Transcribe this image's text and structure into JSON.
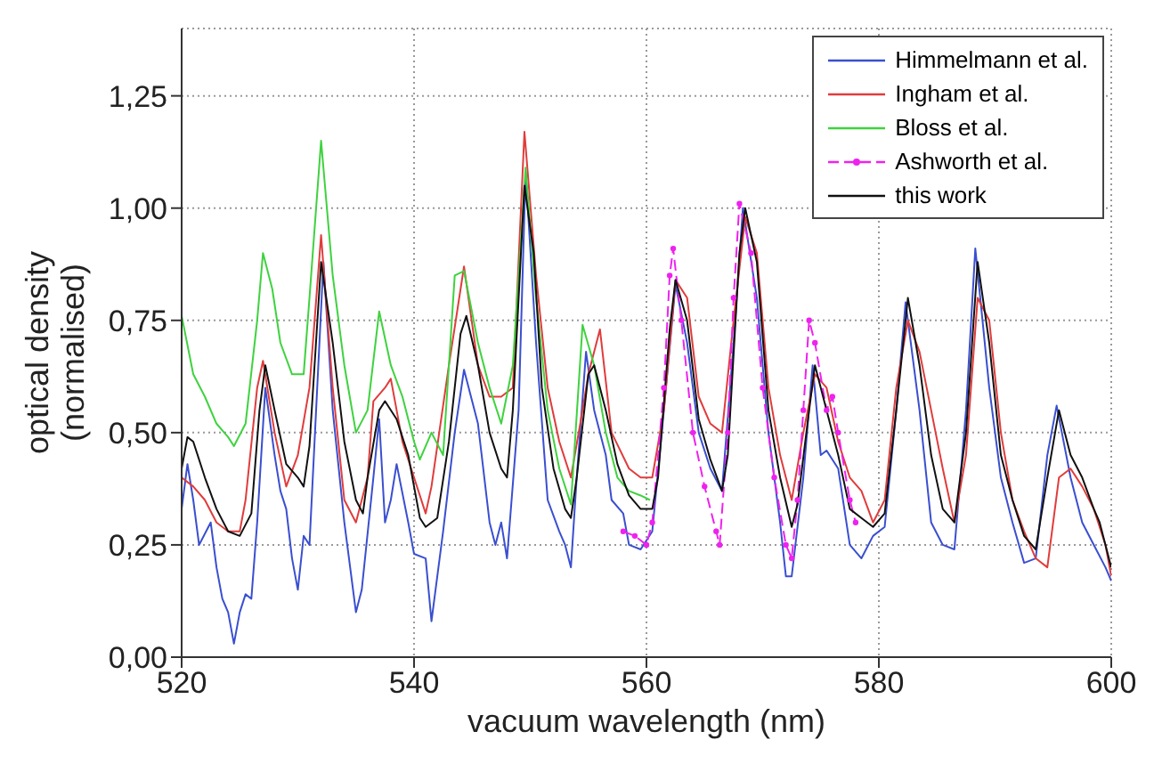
{
  "chart_data": {
    "type": "line",
    "xlabel": "vacuum wavelength (nm)",
    "ylabel": "optical density\n(normalised)",
    "xlim": [
      520,
      600
    ],
    "xticks": [
      520,
      540,
      560,
      580,
      600
    ],
    "ylim": [
      0,
      1.4
    ],
    "yticks": [
      {
        "value": 0,
        "label": "0,00"
      },
      {
        "value": 0.25,
        "label": "0,25"
      },
      {
        "value": 0.5,
        "label": "0,50"
      },
      {
        "value": 0.75,
        "label": "0,75"
      },
      {
        "value": 1,
        "label": "1,00"
      },
      {
        "value": 1.25,
        "label": "1,25"
      }
    ],
    "grid": true,
    "legend": "top right",
    "marker": "none",
    "line_style": "solid",
    "series": [
      {
        "name": "Himmelmann et al.",
        "color": "#3a4fd0",
        "x": [
          520,
          520.5,
          521,
          521.5,
          522.5,
          523,
          523.5,
          524,
          524.5,
          525,
          525.5,
          526,
          526.5,
          527.2,
          528,
          528.5,
          529,
          529.5,
          530,
          530.5,
          531,
          532.2,
          533,
          534,
          535,
          535.5,
          536.5,
          537,
          537.5,
          538,
          538.5,
          539.5,
          540,
          541,
          541.5,
          542.5,
          543.5,
          544.3,
          545.5,
          546.5,
          547,
          547.5,
          548,
          549,
          549.6,
          550.5,
          551.5,
          552.5,
          553,
          553.5,
          554,
          554.8,
          555.5,
          556.5,
          557,
          558,
          558.5,
          559.5,
          560.5,
          561.5,
          562.5,
          563.5,
          564.5,
          565.5,
          566.5,
          567.5,
          568.3,
          569.5,
          570.5,
          571.5,
          572,
          572.5,
          573.5,
          574.3,
          575,
          575.5,
          576.5,
          577.5,
          578.5,
          579.5,
          580.5,
          581.5,
          582.3,
          583.5,
          584.5,
          585.5,
          586.5,
          587.5,
          588.3,
          589.5,
          590.5,
          591.5,
          592.5,
          593.5,
          594.5,
          595.3,
          596.5,
          597.5,
          598.5,
          599.5,
          600
        ],
        "values": [
          0.33,
          0.43,
          0.35,
          0.25,
          0.3,
          0.2,
          0.13,
          0.1,
          0.03,
          0.1,
          0.14,
          0.13,
          0.3,
          0.6,
          0.45,
          0.37,
          0.33,
          0.22,
          0.15,
          0.27,
          0.25,
          0.88,
          0.55,
          0.3,
          0.1,
          0.15,
          0.4,
          0.53,
          0.3,
          0.35,
          0.43,
          0.3,
          0.23,
          0.22,
          0.08,
          0.28,
          0.5,
          0.64,
          0.52,
          0.3,
          0.25,
          0.3,
          0.22,
          0.55,
          1.08,
          0.7,
          0.35,
          0.28,
          0.25,
          0.2,
          0.4,
          0.68,
          0.55,
          0.45,
          0.35,
          0.32,
          0.25,
          0.24,
          0.28,
          0.55,
          0.83,
          0.7,
          0.5,
          0.42,
          0.37,
          0.7,
          1.0,
          0.8,
          0.5,
          0.3,
          0.18,
          0.18,
          0.4,
          0.65,
          0.45,
          0.46,
          0.42,
          0.25,
          0.22,
          0.27,
          0.29,
          0.55,
          0.79,
          0.55,
          0.3,
          0.25,
          0.24,
          0.55,
          0.91,
          0.6,
          0.4,
          0.3,
          0.21,
          0.22,
          0.45,
          0.56,
          0.4,
          0.3,
          0.25,
          0.2,
          0.17
        ]
      },
      {
        "name": "Ingham et al.",
        "color": "#e03c3c",
        "x": [
          520,
          521,
          522,
          523,
          524,
          525,
          525.5,
          526.5,
          527,
          528,
          529,
          530,
          531,
          532,
          533,
          534,
          535,
          536,
          536.5,
          537.5,
          538,
          539,
          540,
          541,
          541.5,
          543,
          544.3,
          545.5,
          546.5,
          547.5,
          548.5,
          549.5,
          550.5,
          551.5,
          552.5,
          553.5,
          554.5,
          555,
          556,
          557,
          558.5,
          559.5,
          560.5,
          561.5,
          562.5,
          563.5,
          564.5,
          565.5,
          566.5,
          567.5,
          568.5,
          569.5,
          570.5,
          571.5,
          572.5,
          573.5,
          574.5,
          575.5,
          576.5,
          577.5,
          578.5,
          579.5,
          580.5,
          581.5,
          582.5,
          583.5,
          584.5,
          585.5,
          586.5,
          587.5,
          588.5,
          589.5,
          590.5,
          591.5,
          592.5,
          593.5,
          594.5,
          595.5,
          596.5,
          597.5,
          598.5,
          599.5,
          600
        ],
        "values": [
          0.4,
          0.38,
          0.35,
          0.3,
          0.28,
          0.28,
          0.35,
          0.6,
          0.66,
          0.5,
          0.38,
          0.45,
          0.6,
          0.94,
          0.6,
          0.35,
          0.3,
          0.4,
          0.57,
          0.6,
          0.62,
          0.48,
          0.4,
          0.32,
          0.38,
          0.65,
          0.87,
          0.65,
          0.58,
          0.58,
          0.6,
          1.17,
          0.85,
          0.6,
          0.48,
          0.4,
          0.55,
          0.63,
          0.73,
          0.5,
          0.42,
          0.4,
          0.4,
          0.55,
          0.84,
          0.8,
          0.58,
          0.52,
          0.5,
          0.75,
          0.98,
          0.9,
          0.6,
          0.45,
          0.35,
          0.5,
          0.63,
          0.6,
          0.48,
          0.4,
          0.37,
          0.3,
          0.35,
          0.6,
          0.75,
          0.68,
          0.55,
          0.42,
          0.3,
          0.45,
          0.8,
          0.75,
          0.5,
          0.35,
          0.28,
          0.22,
          0.2,
          0.4,
          0.42,
          0.38,
          0.33,
          0.25,
          0.18
        ]
      },
      {
        "name": "Bloss et al.",
        "color": "#3fd23f",
        "x": [
          520,
          521,
          522,
          523,
          524,
          524.5,
          525.5,
          526.5,
          527,
          527.8,
          528.5,
          529.5,
          530.5,
          531,
          532,
          533,
          534,
          535,
          536,
          537,
          538,
          539,
          540,
          540.5,
          541.5,
          542.5,
          543.5,
          544.3,
          545.5,
          546.5,
          547.5,
          548.5,
          549.6,
          550.5,
          551.5,
          552.5,
          553.5,
          554.5,
          555.5,
          556.5,
          557.5,
          558.5,
          559.5,
          560.3
        ],
        "values": [
          0.76,
          0.63,
          0.58,
          0.52,
          0.49,
          0.47,
          0.52,
          0.75,
          0.9,
          0.82,
          0.7,
          0.63,
          0.63,
          0.8,
          1.15,
          0.85,
          0.65,
          0.5,
          0.55,
          0.77,
          0.65,
          0.58,
          0.48,
          0.44,
          0.5,
          0.45,
          0.85,
          0.86,
          0.7,
          0.6,
          0.52,
          0.65,
          1.09,
          0.8,
          0.55,
          0.42,
          0.34,
          0.74,
          0.65,
          0.5,
          0.4,
          0.37,
          0.36,
          0.35
        ]
      },
      {
        "name": "Ashworth et al.",
        "color": "#ee22ee",
        "marker": "circle",
        "line_style": "dashed",
        "x": [
          558,
          559,
          560,
          560.5,
          561.5,
          562,
          562.3,
          563,
          564,
          565,
          566,
          566.3,
          567,
          567.5,
          568,
          569,
          570,
          571,
          572,
          572.5,
          573,
          573.5,
          574,
          574.5,
          575.5,
          576,
          576.5,
          577.5,
          578
        ],
        "values": [
          0.28,
          0.27,
          0.25,
          0.3,
          0.6,
          0.85,
          0.91,
          0.75,
          0.5,
          0.38,
          0.28,
          0.25,
          0.5,
          0.8,
          1.01,
          0.9,
          0.6,
          0.4,
          0.25,
          0.22,
          0.35,
          0.55,
          0.75,
          0.7,
          0.55,
          0.58,
          0.5,
          0.35,
          0.3
        ]
      },
      {
        "name": "this work",
        "color": "#111111",
        "x": [
          520,
          520.5,
          521,
          522,
          523,
          524,
          525,
          526,
          526.7,
          527.2,
          528,
          529,
          530,
          530.5,
          531,
          532,
          533,
          534,
          535,
          535.6,
          536,
          537,
          537.5,
          538.5,
          539.5,
          540.5,
          541,
          542,
          543,
          544,
          544.5,
          545.5,
          546.5,
          547.5,
          548,
          548.5,
          549.5,
          550.3,
          551,
          552,
          553,
          553.5,
          554,
          555,
          555.5,
          556.5,
          557.5,
          558.5,
          559.5,
          560.5,
          561,
          562,
          562.5,
          563.5,
          564.5,
          565.5,
          566.5,
          567,
          568,
          568.5,
          569.5,
          570.5,
          571.5,
          572.5,
          573,
          574,
          574.5,
          575.5,
          576.5,
          577.5,
          578.5,
          579.5,
          580.5,
          581.5,
          582.5,
          583.5,
          584.5,
          585.5,
          586.5,
          587.5,
          588.5,
          589.5,
          590.5,
          591.5,
          592.5,
          593.5,
          594.5,
          595.5,
          596.5,
          597.5,
          598.5,
          599,
          600
        ],
        "values": [
          0.42,
          0.49,
          0.48,
          0.4,
          0.33,
          0.28,
          0.27,
          0.32,
          0.55,
          0.65,
          0.55,
          0.43,
          0.4,
          0.38,
          0.47,
          0.88,
          0.7,
          0.48,
          0.35,
          0.32,
          0.4,
          0.55,
          0.57,
          0.53,
          0.45,
          0.31,
          0.29,
          0.31,
          0.48,
          0.72,
          0.76,
          0.65,
          0.5,
          0.42,
          0.4,
          0.55,
          1.05,
          0.9,
          0.6,
          0.42,
          0.33,
          0.31,
          0.4,
          0.63,
          0.65,
          0.55,
          0.43,
          0.36,
          0.33,
          0.33,
          0.4,
          0.73,
          0.84,
          0.75,
          0.53,
          0.44,
          0.37,
          0.45,
          0.9,
          1.0,
          0.88,
          0.55,
          0.4,
          0.29,
          0.34,
          0.55,
          0.65,
          0.55,
          0.45,
          0.33,
          0.31,
          0.29,
          0.32,
          0.55,
          0.8,
          0.65,
          0.45,
          0.33,
          0.3,
          0.5,
          0.88,
          0.7,
          0.45,
          0.35,
          0.27,
          0.24,
          0.4,
          0.55,
          0.45,
          0.4,
          0.33,
          0.3,
          0.2
        ]
      }
    ]
  }
}
